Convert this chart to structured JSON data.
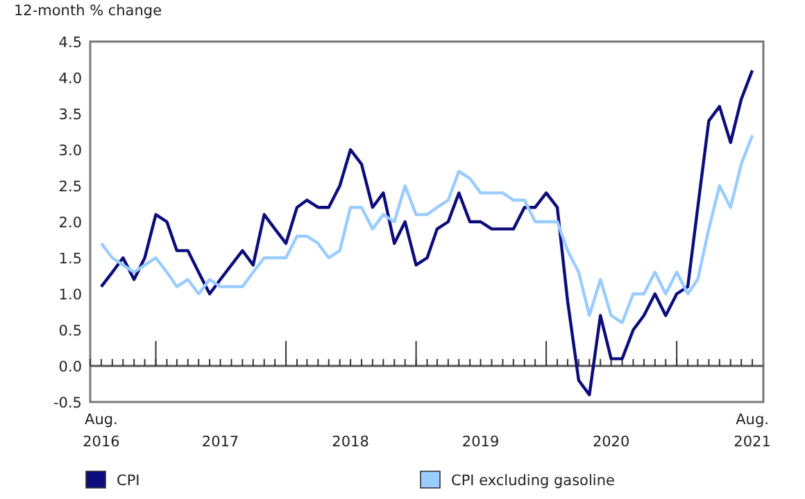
{
  "chart_data": {
    "type": "line",
    "ylabel": "12-month % change",
    "x": [
      "2016-08",
      "2016-09",
      "2016-10",
      "2016-11",
      "2016-12",
      "2017-01",
      "2017-02",
      "2017-03",
      "2017-04",
      "2017-05",
      "2017-06",
      "2017-07",
      "2017-08",
      "2017-09",
      "2017-10",
      "2017-11",
      "2017-12",
      "2018-01",
      "2018-02",
      "2018-03",
      "2018-04",
      "2018-05",
      "2018-06",
      "2018-07",
      "2018-08",
      "2018-09",
      "2018-10",
      "2018-11",
      "2018-12",
      "2019-01",
      "2019-02",
      "2019-03",
      "2019-04",
      "2019-05",
      "2019-06",
      "2019-07",
      "2019-08",
      "2019-09",
      "2019-10",
      "2019-11",
      "2019-12",
      "2020-01",
      "2020-02",
      "2020-03",
      "2020-04",
      "2020-05",
      "2020-06",
      "2020-07",
      "2020-08",
      "2020-09",
      "2020-10",
      "2020-11",
      "2020-12",
      "2021-01",
      "2021-02",
      "2021-03",
      "2021-04",
      "2021-05",
      "2021-06",
      "2021-07",
      "2021-08"
    ],
    "series": [
      {
        "name": "CPI",
        "color": "#0c0c7c",
        "values": [
          1.1,
          1.3,
          1.5,
          1.2,
          1.5,
          2.1,
          2.0,
          1.6,
          1.6,
          1.3,
          1.0,
          1.2,
          1.4,
          1.6,
          1.4,
          2.1,
          1.9,
          1.7,
          2.2,
          2.3,
          2.2,
          2.2,
          2.5,
          3.0,
          2.8,
          2.2,
          2.4,
          1.7,
          2.0,
          1.4,
          1.5,
          1.9,
          2.0,
          2.4,
          2.0,
          2.0,
          1.9,
          1.9,
          1.9,
          2.2,
          2.2,
          2.4,
          2.2,
          0.9,
          -0.2,
          -0.4,
          0.7,
          0.1,
          0.1,
          0.5,
          0.7,
          1.0,
          0.7,
          1.0,
          1.1,
          2.2,
          3.4,
          3.6,
          3.1,
          3.7,
          4.1
        ]
      },
      {
        "name": "CPI excluding gasoline",
        "color": "#99ccff",
        "values": [
          1.7,
          1.5,
          1.4,
          1.3,
          1.4,
          1.5,
          1.3,
          1.1,
          1.2,
          1.0,
          1.2,
          1.1,
          1.1,
          1.1,
          1.3,
          1.5,
          1.5,
          1.5,
          1.8,
          1.8,
          1.7,
          1.5,
          1.6,
          2.2,
          2.2,
          1.9,
          2.1,
          2.0,
          2.5,
          2.1,
          2.1,
          2.2,
          2.3,
          2.7,
          2.6,
          2.4,
          2.4,
          2.4,
          2.3,
          2.3,
          2.0,
          2.0,
          2.0,
          1.6,
          1.3,
          0.7,
          1.2,
          0.7,
          0.6,
          1.0,
          1.0,
          1.3,
          1.0,
          1.3,
          1.0,
          1.2,
          1.9,
          2.5,
          2.2,
          2.8,
          3.2
        ]
      }
    ],
    "xlim": [
      "2016-07",
      "2021-09"
    ],
    "xticks": [
      {
        "value": "2016-08",
        "label": "Aug.\n2016"
      },
      {
        "value": "2017-01",
        "label": null
      },
      {
        "value": "2017-07",
        "label": "2017"
      },
      {
        "value": "2018-01",
        "label": null
      },
      {
        "value": "2018-07",
        "label": "2018"
      },
      {
        "value": "2019-01",
        "label": null
      },
      {
        "value": "2019-07",
        "label": "2019"
      },
      {
        "value": "2020-01",
        "label": null
      },
      {
        "value": "2020-07",
        "label": "2020"
      },
      {
        "value": "2021-01",
        "label": null
      },
      {
        "value": "2021-08",
        "label": "Aug.\n2021"
      }
    ],
    "ylim": [
      -0.5,
      4.5
    ],
    "yticks": [
      {
        "value": -0.5,
        "label": "-0.5"
      },
      {
        "value": 0,
        "label": "0.0"
      },
      {
        "value": 0.5,
        "label": "0.5"
      },
      {
        "value": 1,
        "label": "1.0"
      },
      {
        "value": 1.5,
        "label": "1.5"
      },
      {
        "value": 2,
        "label": "2.0"
      },
      {
        "value": 2.5,
        "label": "2.5"
      },
      {
        "value": 3,
        "label": "3.0"
      },
      {
        "value": 3.5,
        "label": "3.5"
      },
      {
        "value": 4,
        "label": "4.0"
      },
      {
        "value": 4.5,
        "label": "4.5"
      }
    ],
    "ref_lines": [
      {
        "axis": "y",
        "value": 0
      }
    ],
    "legend": "bottom",
    "marker": "none",
    "line_style": "solid"
  }
}
